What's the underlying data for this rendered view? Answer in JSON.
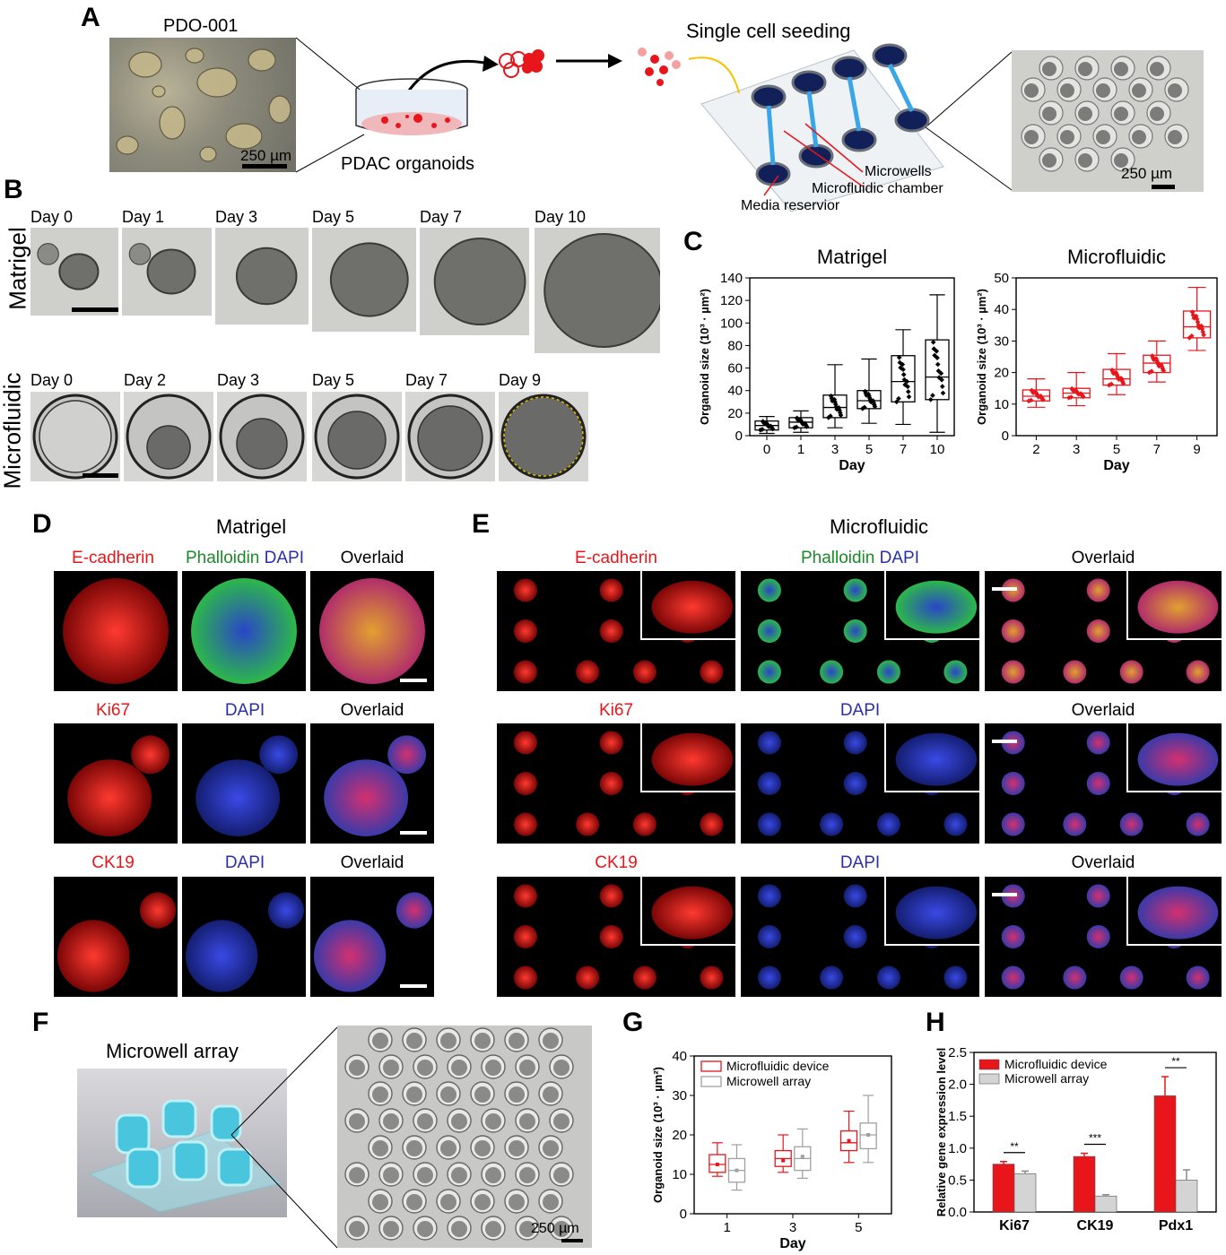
{
  "panels": {
    "A": "A",
    "B": "B",
    "C": "C",
    "D": "D",
    "E": "E",
    "F": "F",
    "G": "G",
    "H": "H"
  },
  "panelA": {
    "pdo_label": "PDO-001",
    "scale_left": "250 µm",
    "dish_label": "PDAC organoids",
    "seeding_title": "Single cell seeding",
    "callout_microwells": "Microwells",
    "callout_chamber": "Microfluidic chamber",
    "callout_reservoir": "Media reservior",
    "scale_right": "250 µm"
  },
  "panelB": {
    "row1_label": "Matrigel",
    "row1_days": [
      "Day 0",
      "Day 1",
      "Day 3",
      "Day 5",
      "Day 7",
      "Day 10"
    ],
    "row2_label": "Microfluidic",
    "row2_days": [
      "Day 0",
      "Day 2",
      "Day 3",
      "Day 5",
      "Day 7",
      "Day 9"
    ]
  },
  "panelD": {
    "title": "Matrigel",
    "rows": [
      {
        "c1": "E-cadherin",
        "c2a": "Phalloidin",
        "c2b": "DAPI",
        "c3": "Overlaid"
      },
      {
        "c1": "Ki67",
        "c2a": "",
        "c2b": "DAPI",
        "c3": "Overlaid"
      },
      {
        "c1": "CK19",
        "c2a": "",
        "c2b": "DAPI",
        "c3": "Overlaid"
      }
    ]
  },
  "panelE": {
    "title": "Microfluidic",
    "rows": [
      {
        "c1": "E-cadherin",
        "c2a": "Phalloidin",
        "c2b": "DAPI",
        "c3": "Overlaid"
      },
      {
        "c1": "Ki67",
        "c2a": "",
        "c2b": "DAPI",
        "c3": "Overlaid"
      },
      {
        "c1": "CK19",
        "c2a": "",
        "c2b": "DAPI",
        "c3": "Overlaid"
      }
    ]
  },
  "panelF": {
    "title": "Microwell array",
    "scale": "250 µm"
  },
  "colors": {
    "red": "#e8151b",
    "grey": "#a0a0a0",
    "fluor_red": "#e8151b",
    "fluor_green": "#2db84a",
    "fluor_blue": "#2a3ad0"
  },
  "chart_data": [
    {
      "id": "C-matrigel",
      "type": "box",
      "title": "Matrigel",
      "xlabel": "Day",
      "ylabel": "Organoid size (10³ · µm²)",
      "categories": [
        "0",
        "1",
        "3",
        "5",
        "7",
        "10"
      ],
      "ylim": [
        0,
        140
      ],
      "yticks": [
        0,
        20,
        40,
        60,
        80,
        100,
        120,
        140
      ],
      "boxes": [
        {
          "min": 2,
          "q1": 5,
          "median": 9,
          "q3": 13,
          "max": 17
        },
        {
          "min": 3,
          "q1": 7,
          "median": 12,
          "q3": 16,
          "max": 22
        },
        {
          "min": 7,
          "q1": 16,
          "median": 25,
          "q3": 36,
          "max": 63
        },
        {
          "min": 11,
          "q1": 24,
          "median": 31,
          "q3": 40,
          "max": 68
        },
        {
          "min": 10,
          "q1": 30,
          "median": 48,
          "q3": 71,
          "max": 94
        },
        {
          "min": 3,
          "q1": 32,
          "median": 52,
          "q3": 85,
          "max": 125
        }
      ],
      "color": "#000000"
    },
    {
      "id": "C-microfluidic",
      "type": "box",
      "title": "Microfluidic",
      "xlabel": "Day",
      "ylabel": "Organoid size (10³ · µm²)",
      "categories": [
        "2",
        "3",
        "5",
        "7",
        "9"
      ],
      "ylim": [
        0,
        50
      ],
      "yticks": [
        0,
        10,
        20,
        30,
        40,
        50
      ],
      "boxes": [
        {
          "min": 9,
          "q1": 11,
          "median": 12.5,
          "q3": 14.5,
          "max": 18
        },
        {
          "min": 9.5,
          "q1": 12,
          "median": 13.5,
          "q3": 15,
          "max": 20
        },
        {
          "min": 13,
          "q1": 16,
          "median": 18,
          "q3": 21,
          "max": 26
        },
        {
          "min": 17,
          "q1": 20,
          "median": 23,
          "q3": 25.5,
          "max": 30
        },
        {
          "min": 27,
          "q1": 31,
          "median": 34.5,
          "q3": 39.5,
          "max": 47
        }
      ],
      "color": "#e8151b"
    },
    {
      "id": "G",
      "type": "box",
      "xlabel": "Day",
      "ylabel": "Organoid size (10³ · µm²)",
      "categories": [
        "1",
        "3",
        "5"
      ],
      "ylim": [
        0,
        40
      ],
      "yticks": [
        0,
        10,
        20,
        30,
        40
      ],
      "series": [
        {
          "name": "Microfluidic device",
          "color": "#e8151b",
          "boxes": [
            {
              "min": 9.5,
              "q1": 10.5,
              "median": 12.5,
              "q3": 15,
              "max": 18,
              "mean": 12.5
            },
            {
              "min": 10.5,
              "q1": 12,
              "median": 14,
              "q3": 16,
              "max": 20,
              "mean": 13.5
            },
            {
              "min": 13,
              "q1": 16,
              "median": 18,
              "q3": 21,
              "max": 26,
              "mean": 18.5
            }
          ]
        },
        {
          "name": "Microwell array",
          "color": "#a0a0a0",
          "boxes": [
            {
              "min": 6,
              "q1": 8,
              "median": 11,
              "q3": 14,
              "max": 17.5,
              "mean": 11
            },
            {
              "min": 9,
              "q1": 11,
              "median": 14,
              "q3": 17,
              "max": 21.5,
              "mean": 14.5
            },
            {
              "min": 13,
              "q1": 16.5,
              "median": 20,
              "q3": 23,
              "max": 30,
              "mean": 20
            }
          ]
        }
      ],
      "legend": "top-left"
    },
    {
      "id": "H",
      "type": "bar",
      "ylabel": "Relative gene expression level",
      "categories": [
        "Ki67",
        "CK19",
        "Pdx1"
      ],
      "ylim": [
        0,
        2.5
      ],
      "yticks": [
        0.0,
        0.5,
        1.0,
        1.5,
        2.0,
        2.5
      ],
      "series": [
        {
          "name": "Microfluidic device",
          "color": "#e8151b",
          "values": [
            0.75,
            0.87,
            1.82
          ],
          "errors": [
            0.04,
            0.05,
            0.3
          ]
        },
        {
          "name": "Microwell array",
          "color": "#d4d4d4",
          "values": [
            0.6,
            0.25,
            0.5
          ],
          "errors": [
            0.04,
            0.02,
            0.16
          ]
        }
      ],
      "significance": [
        "**",
        "***",
        "**"
      ],
      "legend": "top-left"
    }
  ]
}
